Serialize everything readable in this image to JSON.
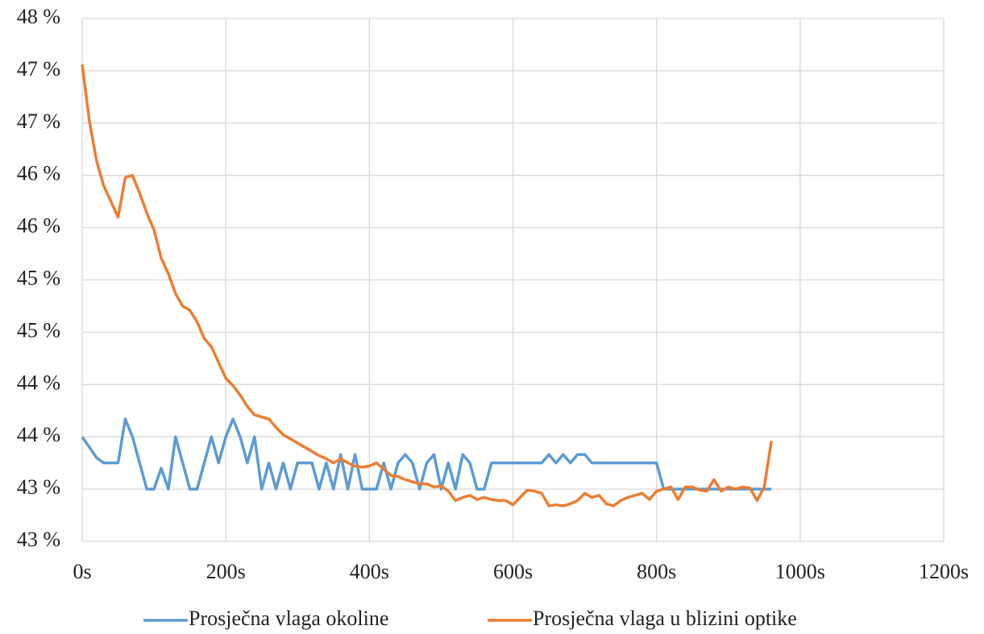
{
  "chart_data": {
    "type": "line",
    "x": [
      0,
      10,
      20,
      30,
      40,
      50,
      60,
      70,
      80,
      90,
      100,
      110,
      120,
      130,
      140,
      150,
      160,
      170,
      180,
      190,
      200,
      210,
      220,
      230,
      240,
      250,
      260,
      270,
      280,
      290,
      300,
      310,
      320,
      330,
      340,
      350,
      360,
      370,
      380,
      390,
      400,
      410,
      420,
      430,
      440,
      450,
      460,
      470,
      480,
      490,
      500,
      510,
      520,
      530,
      540,
      550,
      560,
      570,
      580,
      590,
      600,
      610,
      620,
      630,
      640,
      650,
      660,
      670,
      680,
      690,
      700,
      710,
      720,
      730,
      740,
      750,
      760,
      770,
      780,
      790,
      800,
      810,
      820,
      830,
      840,
      850,
      860,
      870,
      880,
      890,
      900,
      910,
      920,
      930,
      940,
      950,
      960
    ],
    "series": [
      {
        "name": "Prosječna vlaga okoline",
        "color": "#5b9bd5",
        "values": [
          43.5,
          43.4,
          43.3,
          43.25,
          43.25,
          43.25,
          43.67,
          43.5,
          43.25,
          43.0,
          43.0,
          43.2,
          43.0,
          43.5,
          43.25,
          43.0,
          43.0,
          43.25,
          43.5,
          43.25,
          43.5,
          43.67,
          43.5,
          43.25,
          43.5,
          43.0,
          43.25,
          43.0,
          43.25,
          43.0,
          43.25,
          43.25,
          43.25,
          43.0,
          43.25,
          43.0,
          43.33,
          43.0,
          43.33,
          43.0,
          43.0,
          43.0,
          43.25,
          43.0,
          43.25,
          43.33,
          43.25,
          43.0,
          43.25,
          43.33,
          43.0,
          43.25,
          43.0,
          43.33,
          43.25,
          43.0,
          43.0,
          43.25,
          43.25,
          43.25,
          43.25,
          43.25,
          43.25,
          43.25,
          43.25,
          43.33,
          43.25,
          43.33,
          43.25,
          43.33,
          43.33,
          43.25,
          43.25,
          43.25,
          43.25,
          43.25,
          43.25,
          43.25,
          43.25,
          43.25,
          43.25,
          43.0,
          43.0,
          43.0,
          43.0,
          43.0,
          43.0,
          43.0,
          43.0,
          43.0,
          43.0,
          43.0,
          43.0,
          43.0,
          43.0,
          43.0,
          43.0
        ]
      },
      {
        "name": "Prosječna vlaga u blizini optike",
        "color": "#ed7d31",
        "values": [
          47.06,
          46.52,
          46.14,
          45.9,
          45.75,
          45.6,
          45.98,
          46.0,
          45.83,
          45.64,
          45.48,
          45.21,
          45.06,
          44.87,
          44.75,
          44.71,
          44.6,
          44.44,
          44.36,
          44.21,
          44.06,
          43.99,
          43.9,
          43.79,
          43.71,
          43.69,
          43.67,
          43.59,
          43.52,
          43.48,
          43.44,
          43.4,
          43.36,
          43.32,
          43.29,
          43.25,
          43.29,
          43.25,
          43.22,
          43.21,
          43.22,
          43.25,
          43.19,
          43.13,
          43.12,
          43.09,
          43.07,
          43.05,
          43.05,
          43.02,
          43.03,
          42.98,
          42.89,
          42.92,
          42.94,
          42.9,
          42.92,
          42.9,
          42.89,
          42.89,
          42.85,
          42.92,
          42.99,
          42.98,
          42.96,
          42.84,
          42.85,
          42.84,
          42.86,
          42.89,
          42.96,
          42.92,
          42.94,
          42.86,
          42.84,
          42.89,
          42.92,
          42.94,
          42.96,
          42.9,
          42.98,
          43.0,
          43.02,
          42.9,
          43.02,
          43.02,
          42.99,
          42.98,
          43.09,
          42.98,
          43.02,
          43.0,
          43.02,
          43.01,
          42.89,
          43.02,
          43.46
        ]
      }
    ],
    "xlim": [
      0,
      1200
    ],
    "xticks": [
      {
        "value": 0,
        "label": "0s"
      },
      {
        "value": 200,
        "label": "200s"
      },
      {
        "value": 400,
        "label": "400s"
      },
      {
        "value": 600,
        "label": "600s"
      },
      {
        "value": 800,
        "label": "800s"
      },
      {
        "value": 1000,
        "label": "1000s"
      },
      {
        "value": 1200,
        "label": "1200s"
      }
    ],
    "ylim": [
      42.5,
      47.5
    ],
    "yticks": [
      {
        "value": 42.5,
        "label": "43 %"
      },
      {
        "value": 43,
        "label": "43 %"
      },
      {
        "value": 43.5,
        "label": "44 %"
      },
      {
        "value": 44,
        "label": "44 %"
      },
      {
        "value": 44.5,
        "label": "45 %"
      },
      {
        "value": 45,
        "label": "45 %"
      },
      {
        "value": 45.5,
        "label": "46 %"
      },
      {
        "value": 46,
        "label": "46 %"
      },
      {
        "value": 46.5,
        "label": "47 %"
      },
      {
        "value": 47,
        "label": "47 %"
      },
      {
        "value": 47.5,
        "label": "48 %"
      }
    ],
    "grid": true,
    "legend": "bottom"
  }
}
